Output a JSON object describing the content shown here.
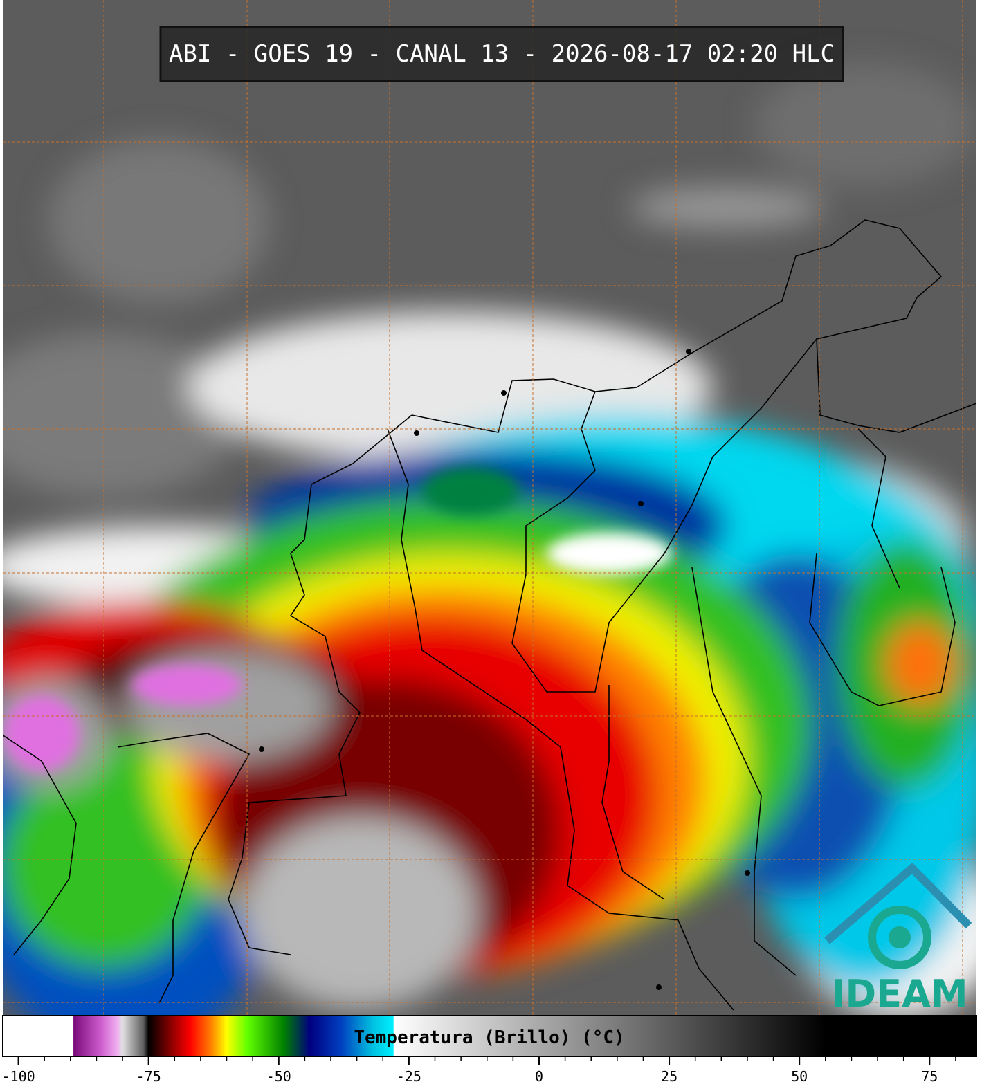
{
  "header": {
    "title": "ABI - GOES 19 - CANAL 13 - 2026-08-17 02:20 HLC"
  },
  "colorbar": {
    "label": "Temperatura (Brillo) (°C)",
    "xlim": [
      -103,
      84
    ],
    "xticks": [
      -100,
      -75,
      -50,
      -25,
      0,
      25,
      50,
      75
    ],
    "minor_xticks": [
      -95,
      -90,
      -85,
      -80,
      -70,
      -65,
      -60,
      -55,
      -45,
      -40,
      -35,
      -30,
      -20,
      -15,
      -10,
      -5,
      5,
      10,
      15,
      20,
      30,
      35,
      40,
      45,
      55,
      60,
      65,
      70,
      80
    ],
    "colormap": [
      {
        "value": -103,
        "color": "#ffffff"
      },
      {
        "value": -89.5,
        "color": "#ffffff"
      },
      {
        "value": -89.4,
        "color": "#7a0a7a"
      },
      {
        "value": -84,
        "color": "#d060d0"
      },
      {
        "value": -81,
        "color": "#f0b0f0"
      },
      {
        "value": -80,
        "color": "#e0e0e0"
      },
      {
        "value": -76,
        "color": "#606060"
      },
      {
        "value": -75,
        "color": "#000000"
      },
      {
        "value": -71,
        "color": "#800000"
      },
      {
        "value": -67,
        "color": "#ff0000"
      },
      {
        "value": -63,
        "color": "#ff8000"
      },
      {
        "value": -60,
        "color": "#ffff00"
      },
      {
        "value": -56,
        "color": "#60ff00"
      },
      {
        "value": -49,
        "color": "#008000"
      },
      {
        "value": -44,
        "color": "#000080"
      },
      {
        "value": -38,
        "color": "#0040c0"
      },
      {
        "value": -32,
        "color": "#00c0e0"
      },
      {
        "value": -28,
        "color": "#00f0ff"
      },
      {
        "value": -27.9,
        "color": "#ffffff"
      },
      {
        "value": 55,
        "color": "#000000"
      },
      {
        "value": 84,
        "color": "#000000"
      }
    ]
  },
  "logo": {
    "text": "IDEAM"
  }
}
